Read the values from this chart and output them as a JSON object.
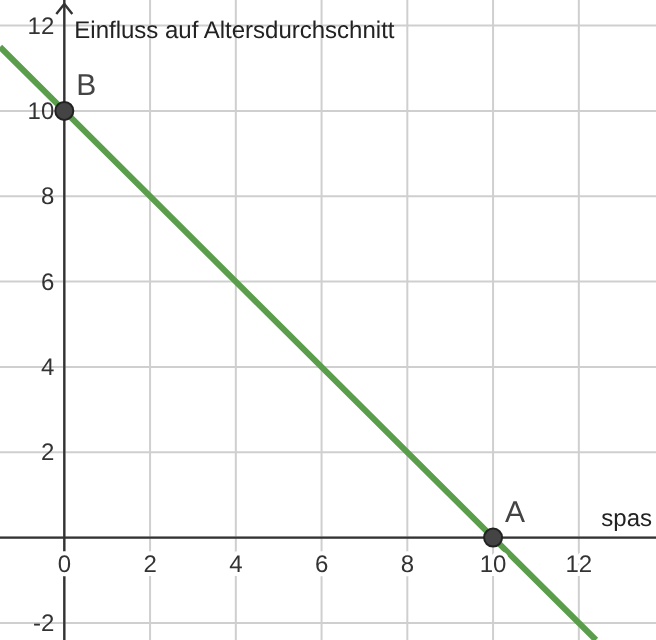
{
  "chart_data": {
    "type": "line",
    "ylabel": "Einfluss auf Altersdurchschnitt",
    "xlabel": "spas",
    "xlim": [
      -1.5,
      13.8
    ],
    "ylim": [
      -2.4,
      12.6
    ],
    "xticks": [
      0,
      2,
      4,
      6,
      8,
      10,
      12
    ],
    "yticks": [
      -2,
      {
        "value": 0,
        "label": null
      },
      2,
      4,
      6,
      8,
      10,
      12
    ],
    "grid": true,
    "series": [
      {
        "type": "line",
        "color": "#5a9e4b",
        "x": [
          -1.5,
          0,
          10,
          12.4
        ],
        "values": [
          11.5,
          10,
          0,
          -2.4
        ],
        "marker": "none"
      },
      {
        "type": "scatter",
        "color": "#444444",
        "x": [
          0,
          10
        ],
        "values": [
          10,
          0
        ],
        "marker": "circle"
      }
    ],
    "annotations": [
      {
        "text": "B",
        "x": 0,
        "y": 10
      },
      {
        "text": "A",
        "x": 10,
        "y": 0
      }
    ]
  }
}
